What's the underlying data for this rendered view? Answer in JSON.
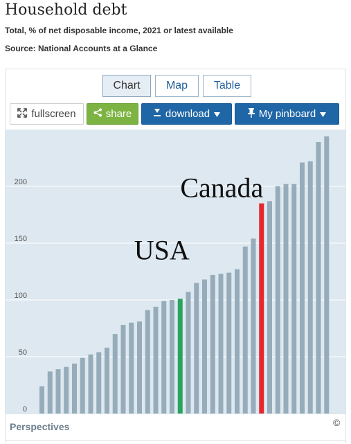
{
  "header": {
    "title": "Household debt",
    "subtitle": "Total, % of net disposable income, 2021 or latest available",
    "source": "Source: National Accounts at a Glance"
  },
  "tabs": [
    {
      "label": "Chart",
      "active": true
    },
    {
      "label": "Map",
      "active": false
    },
    {
      "label": "Table",
      "active": false
    }
  ],
  "toolbar": {
    "fullscreen_label": "fullscreen",
    "share_label": "share",
    "download_label": "download",
    "pinboard_label": "My pinboard"
  },
  "colors": {
    "bar": "#96acba",
    "usa": "#2aa35c",
    "canada": "#e8272d",
    "plot_bg": "#dde8f0",
    "share_button": "#7cb342",
    "primary_button": "#1f66a6"
  },
  "chart_data": {
    "type": "bar",
    "title": "",
    "xlabel": "",
    "ylabel": "",
    "ylim": [
      0,
      250
    ],
    "yticks": [
      0,
      50,
      100,
      150,
      200
    ],
    "grid": true,
    "values": [
      24,
      37,
      39,
      41,
      44,
      49,
      52,
      54,
      58,
      70,
      78,
      80,
      81,
      91,
      94,
      99,
      100,
      101,
      107,
      115,
      118,
      122,
      123,
      124,
      127,
      147,
      154,
      185,
      187,
      200,
      202,
      202,
      221,
      222,
      239,
      244
    ],
    "highlight": [
      {
        "index": 17,
        "label": "USA",
        "color": "#2aa35c"
      },
      {
        "index": 27,
        "label": "Canada",
        "color": "#e8272d"
      }
    ]
  },
  "footer": {
    "perspectives_label": "Perspectives",
    "copyright": "©"
  }
}
